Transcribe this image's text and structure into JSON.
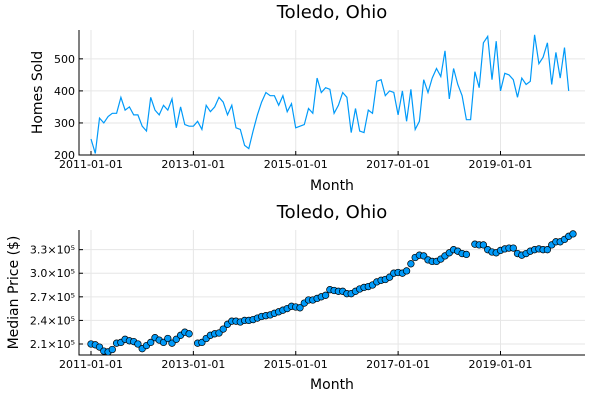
{
  "chart_data": [
    {
      "type": "line",
      "title": "Toledo, Ohio",
      "xlabel": "Month",
      "ylabel": "Homes Sold",
      "x_start": "2011-01-01",
      "x_ticks": [
        "2011-01-01",
        "2013-01-01",
        "2015-01-01",
        "2017-01-01",
        "2019-01-01"
      ],
      "ylim": [
        200,
        590
      ],
      "y_ticks": [
        200,
        300,
        400,
        500
      ],
      "y_tick_labels": [
        "200",
        "300",
        "400",
        "500"
      ],
      "grid": true,
      "legend": "none",
      "color": "#009af9",
      "series": [
        {
          "values": [
            250,
            205,
            315,
            300,
            320,
            330,
            330,
            380,
            340,
            350,
            325,
            325,
            290,
            275,
            380,
            340,
            325,
            355,
            340,
            375,
            285,
            350,
            295,
            290,
            290,
            305,
            280,
            355,
            335,
            350,
            380,
            365,
            325,
            355,
            285,
            280,
            230,
            220,
            275,
            325,
            365,
            395,
            385,
            385,
            355,
            385,
            335,
            360,
            285,
            290,
            295,
            345,
            330,
            440,
            395,
            410,
            405,
            330,
            355,
            395,
            380,
            270,
            345,
            275,
            270,
            340,
            330,
            430,
            435,
            385,
            400,
            395,
            325,
            400,
            305,
            405,
            280,
            305,
            435,
            395,
            440,
            470,
            445,
            525,
            375,
            470,
            420,
            385,
            310,
            310,
            460,
            410,
            550,
            570,
            435,
            555,
            400,
            455,
            450,
            435,
            380,
            440,
            420,
            430,
            575,
            485,
            505,
            550,
            420,
            520,
            440,
            535,
            400
          ]
        }
      ]
    },
    {
      "type": "scatter",
      "title": "Toledo, Ohio",
      "xlabel": "Month",
      "ylabel": "Median Price ($)",
      "x_start": "2011-01-01",
      "x_ticks": [
        "2011-01-01",
        "2013-01-01",
        "2015-01-01",
        "2017-01-01",
        "2019-01-01"
      ],
      "ylim": [
        196000,
        355000
      ],
      "y_ticks": [
        210000,
        240000,
        270000,
        300000,
        330000
      ],
      "y_tick_labels": [
        "2.1×10⁵",
        "2.4×10⁵",
        "2.7×10⁵",
        "3.0×10⁵",
        "3.3×10⁵"
      ],
      "grid": true,
      "legend": "none",
      "color": "#009af9",
      "series": [
        {
          "values": [
            210000,
            209000,
            206000,
            201000,
            200000,
            203000,
            211000,
            212000,
            216000,
            214000,
            213000,
            210000,
            204000,
            208000,
            212000,
            218000,
            215000,
            212000,
            217000,
            211000,
            216000,
            221000,
            225000,
            223000,
            null,
            211000,
            212000,
            217000,
            221000,
            223000,
            224000,
            229000,
            235000,
            239000,
            239000,
            238000,
            240000,
            240000,
            241000,
            243000,
            245000,
            246000,
            247000,
            249000,
            251000,
            253000,
            255000,
            258000,
            257000,
            256000,
            262000,
            266000,
            266000,
            268000,
            270000,
            272000,
            279000,
            278000,
            277000,
            277000,
            274000,
            274000,
            277000,
            280000,
            282000,
            283000,
            285000,
            289000,
            291000,
            292000,
            295000,
            300000,
            301000,
            300000,
            303000,
            312000,
            320000,
            323000,
            322000,
            317000,
            315000,
            315000,
            318000,
            322000,
            326000,
            330000,
            328000,
            325000,
            324000,
            null,
            337000,
            336000,
            336000,
            330000,
            327000,
            326000,
            329000,
            331000,
            332000,
            332000,
            325000,
            323000,
            325000,
            328000,
            330000,
            331000,
            330000,
            330000,
            336000,
            340000,
            340000,
            343000,
            347000,
            350000
          ]
        }
      ]
    }
  ]
}
